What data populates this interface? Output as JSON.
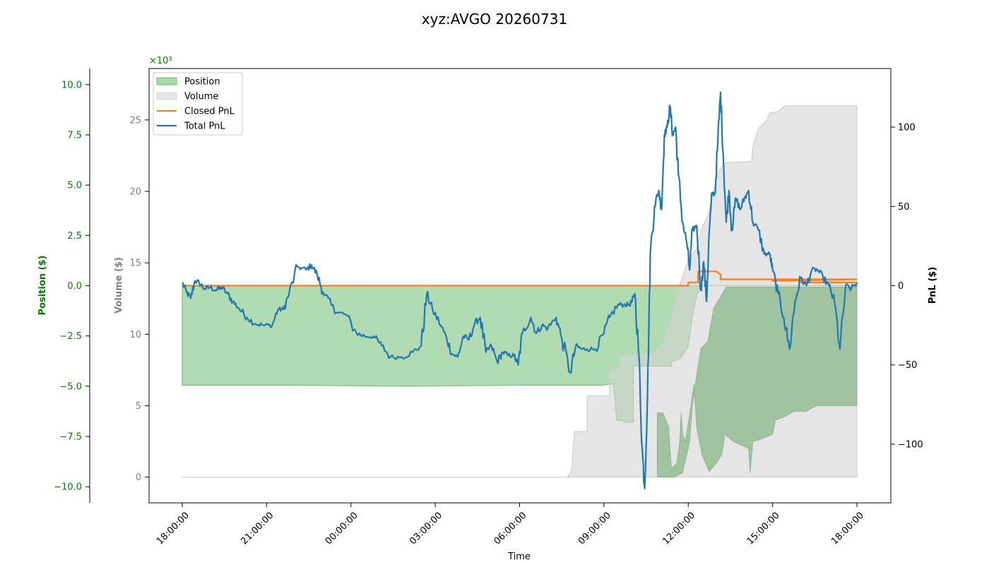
{
  "chart_data": {
    "type": "area",
    "title": "xyz:AVGO 20260731",
    "xlabel": "Time",
    "x_ticks": [
      "18:00:00",
      "21:00:00",
      "00:00:00",
      "03:00:00",
      "06:00:00",
      "09:00:00",
      "12:00:00",
      "15:00:00",
      "18:00:00"
    ],
    "x_range_hours": [
      0,
      24
    ],
    "axes": {
      "position": {
        "label": "Position ($)",
        "color": "#008000",
        "ylim": [
          -10.8,
          10.8
        ],
        "scale_label": "×10³",
        "ticks": [
          "10.0",
          "7.5",
          "5.0",
          "2.5",
          "0.0",
          "−2.5",
          "−5.0",
          "−7.5",
          "−10.0"
        ]
      },
      "volume": {
        "label": "Volume ($)",
        "color": "#808080",
        "ylim": [
          -1.8,
          28.6
        ],
        "ticks": [
          "25",
          "20",
          "15",
          "10",
          "5",
          "0"
        ]
      },
      "pnl": {
        "label": "PnL ($)",
        "color": "#000000",
        "ylim": [
          -137,
          137
        ],
        "ticks": [
          "100",
          "50",
          "0",
          "−50",
          "−100"
        ]
      }
    },
    "legend": {
      "placement": "top-left",
      "entries": [
        {
          "label": "Position",
          "kind": "patch",
          "color": "#2ca02c"
        },
        {
          "label": "Volume",
          "kind": "patch",
          "color": "#bfbfbf"
        },
        {
          "label": "Closed PnL",
          "kind": "line",
          "color": "#ff7f0e"
        },
        {
          "label": "Total PnL",
          "kind": "line",
          "color": "#1f77b4"
        }
      ]
    },
    "series": {
      "position": {
        "color": "#2ca02c",
        "points": [
          [
            0,
            -4.95
          ],
          [
            0.5,
            -4.95
          ],
          [
            4,
            -4.95
          ],
          [
            8,
            -5.0
          ],
          [
            12,
            -4.95
          ],
          [
            14.5,
            -4.95
          ],
          [
            15.0,
            -4.95
          ],
          [
            15.2,
            -4.9
          ],
          [
            15.35,
            -4.9
          ],
          [
            15.45,
            -6.7
          ],
          [
            15.65,
            -6.7
          ],
          [
            15.75,
            -6.8
          ],
          [
            16.05,
            -6.8
          ],
          [
            16.05,
            -4.0
          ],
          [
            17.4,
            -4.0
          ],
          [
            17.4,
            -3.8
          ],
          [
            17.75,
            -3.6
          ],
          [
            18.0,
            -3.0
          ],
          [
            18.15,
            -1.5
          ],
          [
            18.3,
            -0.5
          ],
          [
            18.45,
            0.0
          ],
          [
            24,
            0.0
          ]
        ]
      },
      "volume_light": {
        "color": "#d3d3d3",
        "points": [
          [
            0,
            0.0
          ],
          [
            13.7,
            0.0
          ],
          [
            13.85,
            0.5
          ],
          [
            13.95,
            3.2
          ],
          [
            14.4,
            3.2
          ],
          [
            14.4,
            5.7
          ],
          [
            15.2,
            5.7
          ],
          [
            15.2,
            7.5
          ],
          [
            15.5,
            7.5
          ],
          [
            15.6,
            8.5
          ],
          [
            16.5,
            8.6
          ],
          [
            17.0,
            9.0
          ],
          [
            17.2,
            10.0
          ],
          [
            17.45,
            11.5
          ],
          [
            17.7,
            13.5
          ],
          [
            18.0,
            15.2
          ],
          [
            18.3,
            16.0
          ],
          [
            18.5,
            17.5
          ],
          [
            18.7,
            18.3
          ],
          [
            18.9,
            20.0
          ],
          [
            19.1,
            21.5
          ],
          [
            19.3,
            22.0
          ],
          [
            20.25,
            22.1
          ],
          [
            20.3,
            23.2
          ],
          [
            20.5,
            24.4
          ],
          [
            20.8,
            25.0
          ],
          [
            20.9,
            25.5
          ],
          [
            21.2,
            25.6
          ],
          [
            21.45,
            26.0
          ],
          [
            24.0,
            26.0
          ]
        ]
      },
      "volume_dark": {
        "color": "#8fbc8f",
        "points": [
          [
            16.9,
            0.0
          ],
          [
            17.5,
            0.0
          ],
          [
            17.8,
            0.3
          ],
          [
            18.05,
            2.5
          ],
          [
            18.15,
            5.1
          ],
          [
            18.3,
            7.1
          ],
          [
            18.45,
            9.0
          ],
          [
            18.7,
            9.5
          ],
          [
            18.9,
            11.8
          ],
          [
            19.35,
            13.3
          ],
          [
            24,
            13.3
          ],
          [
            24,
            5.0
          ],
          [
            22.9,
            5.0
          ],
          [
            22.55,
            5.0
          ],
          [
            22.2,
            4.6
          ],
          [
            21.75,
            4.6
          ],
          [
            21.4,
            4.2
          ],
          [
            21.1,
            4.0
          ],
          [
            21.0,
            3.0
          ],
          [
            20.5,
            2.6
          ],
          [
            20.3,
            2.5
          ],
          [
            20.2,
            0.3
          ],
          [
            20.15,
            2.0
          ],
          [
            19.6,
            2.5
          ],
          [
            19.3,
            3.0
          ],
          [
            19.2,
            1.6
          ],
          [
            19.0,
            1.0
          ],
          [
            18.75,
            0.4
          ],
          [
            18.5,
            1.5
          ],
          [
            18.3,
            3.5
          ],
          [
            18.2,
            6.5
          ],
          [
            18.1,
            5.0
          ],
          [
            17.9,
            2.5
          ],
          [
            17.8,
            3.0
          ],
          [
            17.75,
            4.5
          ],
          [
            17.7,
            2.5
          ],
          [
            17.6,
            1.0
          ],
          [
            17.4,
            0.6
          ],
          [
            17.3,
            3.5
          ],
          [
            17.1,
            4.5
          ],
          [
            16.9,
            4.5
          ]
        ]
      },
      "closed_pnl": {
        "color": "#ff7f0e",
        "points": [
          [
            0,
            0
          ],
          [
            18.0,
            0
          ],
          [
            18.0,
            2
          ],
          [
            18.35,
            2
          ],
          [
            18.35,
            9
          ],
          [
            19.0,
            9
          ],
          [
            19.15,
            7
          ],
          [
            19.15,
            4
          ],
          [
            24,
            4
          ],
          [
            21.0,
            3
          ],
          [
            21.0,
            4
          ],
          [
            22.0,
            4
          ],
          [
            22.0,
            2
          ],
          [
            24.0,
            2
          ]
        ]
      },
      "total_pnl": {
        "color": "#1f77b4",
        "anchors": [
          [
            0,
            2
          ],
          [
            0.15,
            -4
          ],
          [
            0.3,
            -8
          ],
          [
            0.45,
            3
          ],
          [
            0.6,
            2
          ],
          [
            0.8,
            -2
          ],
          [
            1.0,
            -1
          ],
          [
            1.2,
            -3
          ],
          [
            1.4,
            -1
          ],
          [
            1.6,
            -5
          ],
          [
            1.8,
            -10
          ],
          [
            2.0,
            -14
          ],
          [
            2.3,
            -20
          ],
          [
            2.6,
            -24
          ],
          [
            2.9,
            -25
          ],
          [
            3.2,
            -25
          ],
          [
            3.4,
            -15
          ],
          [
            3.6,
            -15
          ],
          [
            3.8,
            -5
          ],
          [
            4.1,
            12
          ],
          [
            4.4,
            10
          ],
          [
            4.6,
            13
          ],
          [
            4.8,
            7
          ],
          [
            5.0,
            -4
          ],
          [
            5.3,
            -12
          ],
          [
            5.5,
            -17
          ],
          [
            5.8,
            -18
          ],
          [
            6.2,
            -30
          ],
          [
            6.5,
            -32
          ],
          [
            6.8,
            -32
          ],
          [
            7.1,
            -38
          ],
          [
            7.4,
            -45
          ],
          [
            7.8,
            -45
          ],
          [
            8.2,
            -42
          ],
          [
            8.5,
            -38
          ],
          [
            8.7,
            -5
          ],
          [
            8.9,
            -15
          ],
          [
            9.2,
            -25
          ],
          [
            9.4,
            -33
          ],
          [
            9.6,
            -43
          ],
          [
            9.8,
            -45
          ],
          [
            10.0,
            -32
          ],
          [
            10.2,
            -34
          ],
          [
            10.4,
            -24
          ],
          [
            10.6,
            -20
          ],
          [
            10.8,
            -42
          ],
          [
            11.0,
            -38
          ],
          [
            11.2,
            -48
          ],
          [
            11.4,
            -42
          ],
          [
            11.6,
            -44
          ],
          [
            11.8,
            -44
          ],
          [
            11.95,
            -50
          ],
          [
            12.1,
            -30
          ],
          [
            12.4,
            -20
          ],
          [
            12.6,
            -30
          ],
          [
            12.8,
            -25
          ],
          [
            13.0,
            -27
          ],
          [
            13.3,
            -20
          ],
          [
            13.5,
            -33
          ],
          [
            13.8,
            -55
          ],
          [
            14.0,
            -38
          ],
          [
            14.2,
            -40
          ],
          [
            14.4,
            -40
          ],
          [
            14.7,
            -40
          ],
          [
            15.0,
            -30
          ],
          [
            15.2,
            -20
          ],
          [
            15.5,
            -12
          ],
          [
            15.7,
            -12
          ],
          [
            15.9,
            -12
          ],
          [
            16.0,
            -10
          ],
          [
            16.1,
            -5
          ],
          [
            16.25,
            -45
          ],
          [
            16.35,
            -100
          ],
          [
            16.45,
            -128
          ],
          [
            16.55,
            -70
          ],
          [
            16.65,
            20
          ],
          [
            16.8,
            50
          ],
          [
            16.95,
            60
          ],
          [
            17.05,
            48
          ],
          [
            17.15,
            95
          ],
          [
            17.25,
            100
          ],
          [
            17.35,
            113
          ],
          [
            17.45,
            95
          ],
          [
            17.55,
            100
          ],
          [
            17.65,
            70
          ],
          [
            17.8,
            40
          ],
          [
            17.95,
            27
          ],
          [
            18.05,
            10
          ],
          [
            18.15,
            35
          ],
          [
            18.3,
            38
          ],
          [
            18.45,
            -3
          ],
          [
            18.55,
            15
          ],
          [
            18.65,
            -10
          ],
          [
            18.75,
            35
          ],
          [
            18.85,
            58
          ],
          [
            18.95,
            58
          ],
          [
            19.05,
            90
          ],
          [
            19.15,
            122
          ],
          [
            19.25,
            80
          ],
          [
            19.35,
            40
          ],
          [
            19.45,
            60
          ],
          [
            19.55,
            35
          ],
          [
            19.7,
            55
          ],
          [
            19.85,
            48
          ],
          [
            20.0,
            55
          ],
          [
            20.15,
            60
          ],
          [
            20.3,
            40
          ],
          [
            20.5,
            35
          ],
          [
            20.7,
            20
          ],
          [
            20.9,
            20
          ],
          [
            21.0,
            10
          ],
          [
            21.2,
            -5
          ],
          [
            21.4,
            -20
          ],
          [
            21.6,
            -40
          ],
          [
            21.8,
            -10
          ],
          [
            22.0,
            5
          ],
          [
            22.2,
            0
          ],
          [
            22.4,
            10
          ],
          [
            22.6,
            10
          ],
          [
            22.8,
            5
          ],
          [
            23.0,
            0
          ],
          [
            23.2,
            -10
          ],
          [
            23.4,
            -40
          ],
          [
            23.6,
            0
          ],
          [
            23.8,
            -2
          ],
          [
            24.0,
            2
          ]
        ]
      }
    }
  }
}
